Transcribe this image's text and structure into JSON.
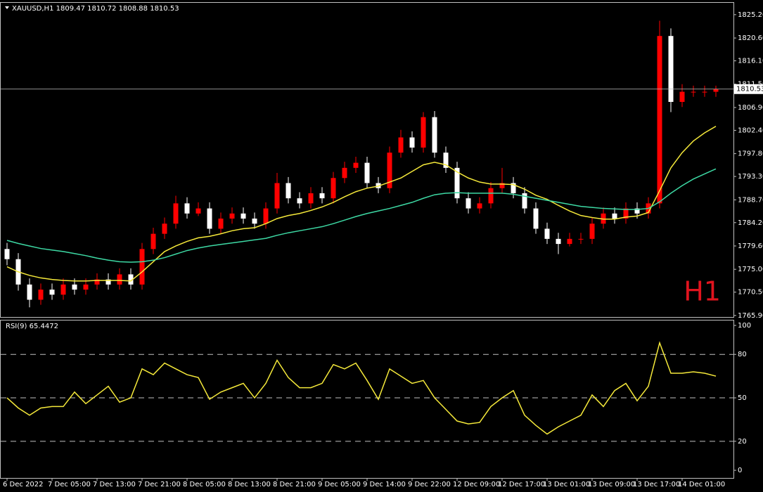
{
  "chart_data": [
    {
      "type": "candlestick",
      "title": "XAUUSD,H1  1809.47 1810.72 1808.88 1810.53",
      "timeframe_label": "H1",
      "last_price": 1810.53,
      "up_color": "#ff0000",
      "down_color": "#ffffff",
      "open": [
        1779,
        1777,
        1772,
        1769,
        1771,
        1770,
        1772,
        1771,
        1772,
        1773,
        1772,
        1774,
        1772,
        1779,
        1782,
        1784,
        1788,
        1786,
        1787,
        1783,
        1785,
        1786,
        1785,
        1784,
        1787,
        1792,
        1789,
        1788,
        1790,
        1789,
        1793,
        1795,
        1796,
        1792,
        1791,
        1798,
        1801,
        1799,
        1805,
        1798,
        1795,
        1789,
        1787,
        1788,
        1791,
        1792,
        1790,
        1787,
        1783,
        1781,
        1780,
        1781,
        1781,
        1784,
        1786,
        1785,
        1787,
        1786,
        1788,
        1821,
        1808,
        1810,
        1810,
        1810
      ],
      "high": [
        1780.2,
        1778.2,
        1773.2,
        1772.2,
        1772.2,
        1773.2,
        1773.2,
        1773.2,
        1774.2,
        1774.2,
        1775.2,
        1775.2,
        1780.2,
        1783.2,
        1785.2,
        1789.5,
        1789.2,
        1788.2,
        1788.2,
        1786.2,
        1787.2,
        1787.2,
        1786.2,
        1788.2,
        1794,
        1793.2,
        1790.2,
        1791.2,
        1791.2,
        1794.2,
        1796.2,
        1797.2,
        1797.2,
        1793.2,
        1799.2,
        1802.5,
        1802.2,
        1806,
        1806.2,
        1799.2,
        1796.2,
        1790.2,
        1789.2,
        1792.2,
        1795,
        1793.2,
        1791.2,
        1788.2,
        1784.2,
        1782.2,
        1782.2,
        1782.2,
        1785.2,
        1787.2,
        1787.2,
        1788.2,
        1788.2,
        1789.2,
        1824,
        1822.5,
        1811.5,
        1811.2,
        1811.2,
        1811.2
      ],
      "low": [
        1775.8,
        1770.8,
        1767.5,
        1768,
        1769,
        1769,
        1770,
        1770,
        1771,
        1771,
        1771,
        1771,
        1771,
        1778,
        1781,
        1783,
        1785,
        1785.5,
        1782,
        1782,
        1784,
        1784,
        1783,
        1783,
        1786,
        1788,
        1787,
        1787,
        1788,
        1788,
        1792,
        1794,
        1791,
        1790,
        1790,
        1797,
        1798,
        1798,
        1797,
        1794,
        1788,
        1786,
        1786,
        1787,
        1790,
        1789,
        1786,
        1782,
        1780,
        1778,
        1779.5,
        1780,
        1780,
        1783,
        1784,
        1784,
        1785,
        1785,
        1787,
        1806,
        1807,
        1809,
        1809,
        1809
      ],
      "close": [
        1777,
        1772,
        1769,
        1771,
        1770,
        1772,
        1771,
        1772,
        1773,
        1772,
        1774,
        1772,
        1779,
        1782,
        1784,
        1788,
        1786,
        1787,
        1783,
        1785,
        1786,
        1785,
        1784,
        1787,
        1792,
        1789,
        1788,
        1790,
        1789,
        1793,
        1795,
        1796,
        1792,
        1791,
        1798,
        1801,
        1799,
        1805,
        1798,
        1795,
        1789,
        1787,
        1788,
        1791,
        1792,
        1790,
        1787,
        1783,
        1781,
        1780,
        1781,
        1781,
        1784,
        1786,
        1785,
        1787,
        1786,
        1788,
        1821,
        1808,
        1810,
        1810,
        1810,
        1810.5
      ],
      "series": [
        {
          "color": "#f5e93a",
          "values": [
            1775.5,
            1774.5,
            1773.8,
            1773.3,
            1773,
            1772.8,
            1772.7,
            1772.7,
            1772.8,
            1772.8,
            1772.8,
            1772.7,
            1774.5,
            1776.5,
            1778.5,
            1779.6,
            1780.5,
            1781.2,
            1781.5,
            1782,
            1782.6,
            1783,
            1783.2,
            1784,
            1785,
            1785.6,
            1786,
            1786.6,
            1787.3,
            1788.2,
            1789.3,
            1790.3,
            1791,
            1791.4,
            1792.2,
            1793,
            1794.3,
            1795.6,
            1796.1,
            1795.6,
            1794.2,
            1793,
            1792.2,
            1791.8,
            1791.8,
            1791.7,
            1790.8,
            1789.6,
            1788.8,
            1787.6,
            1786.5,
            1785.6,
            1785.2,
            1784.9,
            1784.9,
            1785.3,
            1785.5,
            1786.2,
            1790.5,
            1795,
            1798,
            1800.3,
            1801.9,
            1803.2
          ]
        },
        {
          "color": "#3dd9a4",
          "values": [
            1780.7,
            1780.1,
            1779.6,
            1779.1,
            1778.8,
            1778.5,
            1778.1,
            1777.7,
            1777.2,
            1776.8,
            1776.5,
            1776.4,
            1776.5,
            1776.8,
            1777.3,
            1778,
            1778.7,
            1779.2,
            1779.6,
            1779.9,
            1780.2,
            1780.5,
            1780.8,
            1781.1,
            1781.7,
            1782.2,
            1782.6,
            1783,
            1783.4,
            1784,
            1784.7,
            1785.4,
            1786,
            1786.5,
            1787,
            1787.6,
            1788.2,
            1789,
            1789.7,
            1790,
            1790.1,
            1790,
            1790,
            1790,
            1790,
            1789.8,
            1789.4,
            1789,
            1788.6,
            1788.2,
            1787.8,
            1787.4,
            1787.2,
            1787,
            1786.9,
            1786.8,
            1786.8,
            1787,
            1788.3,
            1790,
            1791.5,
            1792.8,
            1793.8,
            1794.8
          ]
        }
      ],
      "ylim": [
        1765.6,
        1827.4
      ],
      "yticks": [
        {
          "value": 1825.2,
          "label": "1825.20"
        },
        {
          "value": 1820.6,
          "label": "1820.60"
        },
        {
          "value": 1816.1,
          "label": "1816.10"
        },
        {
          "value": 1811.5,
          "label": "1811.50"
        },
        {
          "value": 1806.9,
          "label": "1806.90"
        },
        {
          "value": 1802.4,
          "label": "1802.40"
        },
        {
          "value": 1797.8,
          "label": "1797.80"
        },
        {
          "value": 1793.3,
          "label": "1793.30"
        },
        {
          "value": 1788.7,
          "label": "1788.70"
        },
        {
          "value": 1784.2,
          "label": "1784.20"
        },
        {
          "value": 1779.6,
          "label": "1779.60"
        },
        {
          "value": 1775,
          "label": "1775.00"
        },
        {
          "value": 1770.5,
          "label": "1770.50"
        },
        {
          "value": 1765.9,
          "label": "1765.90"
        }
      ]
    },
    {
      "type": "line",
      "title": "RSI(9) 65.4472",
      "color": "#f5e93a",
      "values": [
        50,
        43,
        38,
        43,
        44,
        44,
        54,
        46,
        52,
        58,
        47,
        50,
        70,
        66,
        74,
        70,
        66,
        64,
        49,
        54,
        57,
        60,
        50,
        60,
        76,
        64,
        57,
        57,
        60,
        73,
        70,
        74,
        62,
        49,
        70,
        65,
        60,
        62,
        50,
        42,
        34,
        32,
        33,
        44,
        50,
        55,
        38,
        31,
        25,
        30,
        34,
        38,
        52,
        44,
        55,
        60,
        48,
        58,
        88,
        67,
        67,
        68,
        67,
        65
      ],
      "ylim": [
        -5.3,
        103.4
      ],
      "yticks": [
        100,
        80,
        50,
        20,
        0
      ],
      "levels": [
        80,
        50,
        20
      ],
      "xticks": [
        {
          "value": 0,
          "label": "6 Dec 2022"
        },
        {
          "value": 4,
          "label": "7 Dec 05:00"
        },
        {
          "value": 8,
          "label": "7 Dec 13:00"
        },
        {
          "value": 12,
          "label": "7 Dec 21:00"
        },
        {
          "value": 16,
          "label": "8 Dec 05:00"
        },
        {
          "value": 20,
          "label": "8 Dec 13:00"
        },
        {
          "value": 24,
          "label": "8 Dec 21:00"
        },
        {
          "value": 28,
          "label": "9 Dec 05:00"
        },
        {
          "value": 32,
          "label": "9 Dec 14:00"
        },
        {
          "value": 36,
          "label": "9 Dec 22:00"
        },
        {
          "value": 40,
          "label": "12 Dec 09:00"
        },
        {
          "value": 44,
          "label": "12 Dec 17:00"
        },
        {
          "value": 48,
          "label": "13 Dec 01:00"
        },
        {
          "value": 52,
          "label": "13 Dec 09:00"
        },
        {
          "value": 56,
          "label": "13 Dec 17:00"
        },
        {
          "value": 60,
          "label": "14 Dec 01:00"
        }
      ]
    }
  ]
}
